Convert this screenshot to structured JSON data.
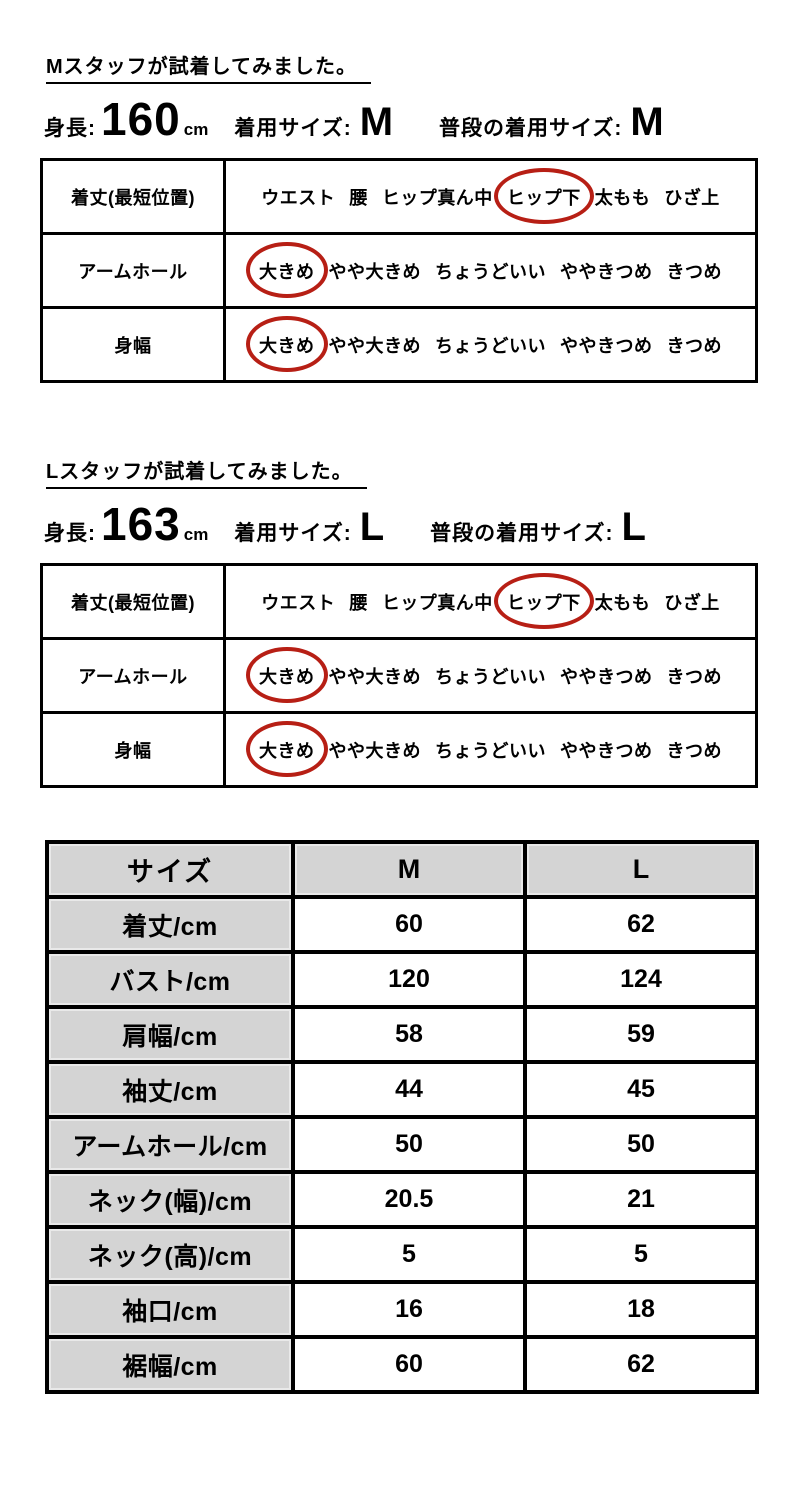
{
  "colors": {
    "circle_red": "#b71f15",
    "table_gray": "#d4d4d4"
  },
  "fit_sections": [
    {
      "title": "Mスタッフが試着してみました。",
      "height_label": "身長:",
      "height_value": "160",
      "height_unit": "cm",
      "worn_size_label": "着用サイズ:",
      "worn_size": "M",
      "usual_size_label": "普段の着用サイズ:",
      "usual_size": "M",
      "rows": [
        {
          "label": "着丈(最短位置)",
          "options": [
            {
              "text": "ウエスト"
            },
            {
              "text": "腰"
            },
            {
              "text": "ヒップ真ん中"
            },
            {
              "text": "ヒップ下",
              "circled": true
            },
            {
              "text": "太もも"
            },
            {
              "text": "ひざ上"
            }
          ]
        },
        {
          "label": "アームホール",
          "options": [
            {
              "text": "大きめ",
              "circled": true
            },
            {
              "text": "やや大きめ"
            },
            {
              "text": "ちょうどいい"
            },
            {
              "text": "ややきつめ"
            },
            {
              "text": "きつめ"
            }
          ]
        },
        {
          "label": "身幅",
          "options": [
            {
              "text": "大きめ",
              "circled": true
            },
            {
              "text": "やや大きめ"
            },
            {
              "text": "ちょうどいい"
            },
            {
              "text": "ややきつめ"
            },
            {
              "text": "きつめ"
            }
          ]
        }
      ]
    },
    {
      "title": "Lスタッフが試着してみました。",
      "height_label": "身長:",
      "height_value": "163",
      "height_unit": "cm",
      "worn_size_label": "着用サイズ:",
      "worn_size": "L",
      "usual_size_label": "普段の着用サイズ:",
      "usual_size": "L",
      "rows": [
        {
          "label": "着丈(最短位置)",
          "options": [
            {
              "text": "ウエスト"
            },
            {
              "text": "腰"
            },
            {
              "text": "ヒップ真ん中"
            },
            {
              "text": "ヒップ下",
              "circled": true
            },
            {
              "text": "太もも"
            },
            {
              "text": "ひざ上"
            }
          ]
        },
        {
          "label": "アームホール",
          "options": [
            {
              "text": "大きめ",
              "circled": true
            },
            {
              "text": "やや大きめ"
            },
            {
              "text": "ちょうどいい"
            },
            {
              "text": "ややきつめ"
            },
            {
              "text": "きつめ"
            }
          ]
        },
        {
          "label": "身幅",
          "options": [
            {
              "text": "大きめ",
              "circled": true
            },
            {
              "text": "やや大きめ"
            },
            {
              "text": "ちょうどいい"
            },
            {
              "text": "ややきつめ"
            },
            {
              "text": "きつめ"
            }
          ]
        }
      ]
    }
  ],
  "size_table": {
    "headers": [
      "サイズ",
      "M",
      "L"
    ],
    "rows": [
      {
        "label": "着丈/cm",
        "m": "60",
        "l": "62"
      },
      {
        "label": "バスト/cm",
        "m": "120",
        "l": "124"
      },
      {
        "label": "肩幅/cm",
        "m": "58",
        "l": "59"
      },
      {
        "label": "袖丈/cm",
        "m": "44",
        "l": "45"
      },
      {
        "label": "アームホール/cm",
        "m": "50",
        "l": "50"
      },
      {
        "label": "ネック(幅)/cm",
        "m": "20.5",
        "l": "21"
      },
      {
        "label": "ネック(高)/cm",
        "m": "5",
        "l": "5"
      },
      {
        "label": "袖口/cm",
        "m": "16",
        "l": "18"
      },
      {
        "label": "裾幅/cm",
        "m": "60",
        "l": "62"
      }
    ]
  }
}
